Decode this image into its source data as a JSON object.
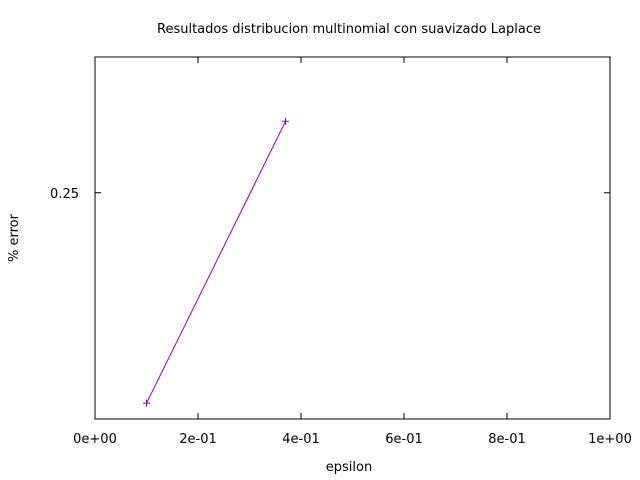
{
  "chart_data": {
    "type": "line",
    "title": "Resultados distribucion multinomial con suavizado Laplace",
    "xlabel": "epsilon",
    "ylabel": "% error",
    "xlim": [
      0,
      1
    ],
    "ylim": [
      0.2,
      0.28
    ],
    "x_ticks": [
      {
        "value": 0,
        "label": "0e+00"
      },
      {
        "value": 0.2,
        "label": "2e-01"
      },
      {
        "value": 0.4,
        "label": "4e-01"
      },
      {
        "value": 0.6,
        "label": "6e-01"
      },
      {
        "value": 0.8,
        "label": "8e-01"
      },
      {
        "value": 1.0,
        "label": "1e+00"
      }
    ],
    "y_ticks": [
      {
        "value": 0.25,
        "label": "0.25"
      }
    ],
    "grid": false,
    "series": [
      {
        "color": "#9400d3",
        "marker": "plus",
        "x": [
          0.1,
          0.37
        ],
        "y": [
          0.2035,
          0.2658
        ]
      }
    ]
  }
}
